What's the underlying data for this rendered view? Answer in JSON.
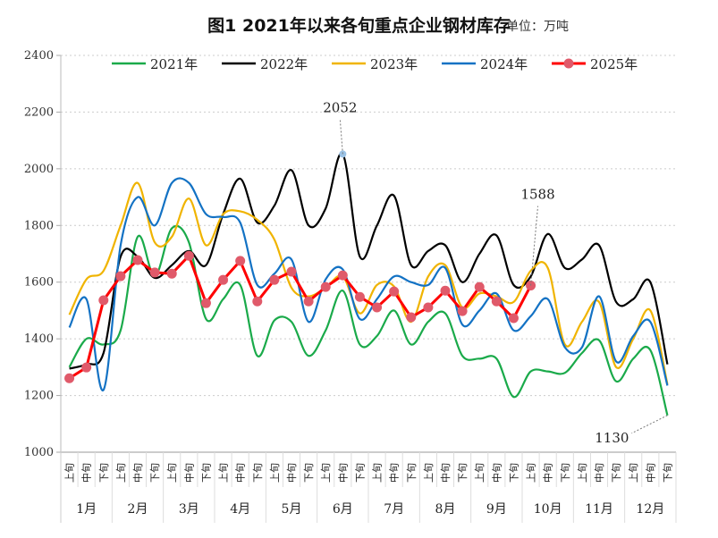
{
  "title": "图1  2021年以来各旬重点企业钢材库存",
  "unit": "单位：万吨",
  "chart_data": {
    "type": "line",
    "title": "图1  2021年以来各旬重点企业钢材库存",
    "ylabel": "",
    "xlabel": "",
    "ylim": [
      1000,
      2400
    ],
    "yticks": [
      1000,
      1200,
      1400,
      1600,
      1800,
      2000,
      2200,
      2400
    ],
    "grid": true,
    "legend": "top",
    "months": [
      "1月",
      "2月",
      "3月",
      "4月",
      "5月",
      "6月",
      "7月",
      "8月",
      "9月",
      "10月",
      "11月",
      "12月"
    ],
    "periods": [
      "上旬",
      "中旬",
      "下旬"
    ],
    "series": [
      {
        "name": "2021年",
        "color": "#1aaa4a",
        "smooth": true,
        "values": [
          1300,
          1400,
          1380,
          1430,
          1760,
          1620,
          1790,
          1740,
          1470,
          1540,
          1590,
          1340,
          1465,
          1460,
          1340,
          1430,
          1570,
          1380,
          1410,
          1500,
          1380,
          1460,
          1490,
          1340,
          1330,
          1330,
          1195,
          1285,
          1285,
          1280,
          1350,
          1395,
          1250,
          1330,
          1360,
          1130
        ]
      },
      {
        "name": "2022年",
        "color": "#000000",
        "smooth": true,
        "values": [
          1295,
          1310,
          1350,
          1690,
          1690,
          1615,
          1660,
          1710,
          1660,
          1840,
          1965,
          1810,
          1870,
          1995,
          1800,
          1860,
          2052,
          1690,
          1800,
          1905,
          1660,
          1710,
          1730,
          1600,
          1700,
          1765,
          1590,
          1620,
          1770,
          1650,
          1680,
          1730,
          1530,
          1540,
          1600,
          1310
        ]
      },
      {
        "name": "2023年",
        "color": "#f0b400",
        "smooth": true,
        "values": [
          1485,
          1610,
          1640,
          1800,
          1950,
          1740,
          1760,
          1895,
          1730,
          1840,
          1850,
          1820,
          1750,
          1580,
          1550,
          1580,
          1620,
          1490,
          1590,
          1585,
          1460,
          1620,
          1660,
          1510,
          1560,
          1550,
          1530,
          1640,
          1650,
          1380,
          1460,
          1530,
          1300,
          1400,
          1500,
          1240
        ]
      },
      {
        "name": "2024年",
        "color": "#1372c4",
        "smooth": true,
        "values": [
          1440,
          1540,
          1220,
          1730,
          1900,
          1800,
          1950,
          1950,
          1840,
          1830,
          1810,
          1590,
          1630,
          1680,
          1460,
          1610,
          1645,
          1470,
          1540,
          1620,
          1600,
          1590,
          1650,
          1450,
          1500,
          1560,
          1430,
          1480,
          1540,
          1370,
          1370,
          1550,
          1320,
          1410,
          1460,
          1235
        ]
      },
      {
        "name": "2025年",
        "color": "#ff0000",
        "marker_color": "#e05a6a",
        "smooth": false,
        "values": [
          1261,
          1299,
          1536,
          1621,
          1678,
          1634,
          1630,
          1693,
          1526,
          1608,
          1675,
          1532,
          1608,
          1637,
          1532,
          1583,
          1624,
          1548,
          1511,
          1567,
          1476,
          1511,
          1570,
          1498,
          1583,
          1532,
          1473,
          1588
        ]
      }
    ],
    "annotations": [
      {
        "text": "2052",
        "series": "2022年",
        "index": 16
      },
      {
        "text": "1588",
        "series": "2025年",
        "index": 27
      },
      {
        "text": "1130",
        "series": "2021年",
        "index": 35
      }
    ]
  }
}
